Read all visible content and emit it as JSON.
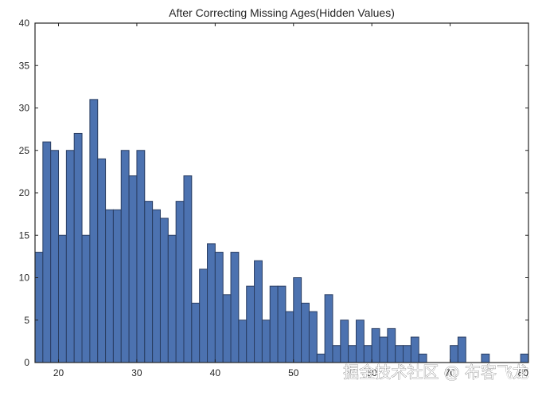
{
  "chart_data": {
    "type": "bar",
    "title": "After Correcting Missing Ages(Hidden Values)",
    "xlabel": "",
    "ylabel": "",
    "xlim": [
      17,
      80
    ],
    "ylim": [
      0,
      40
    ],
    "bin_width": 1,
    "x_ticks": [
      "20",
      "30",
      "40",
      "50",
      "60",
      "70",
      "80"
    ],
    "y_ticks": [
      "0",
      "5",
      "10",
      "15",
      "20",
      "25",
      "30",
      "35",
      "40"
    ],
    "bins": [
      {
        "x": 17,
        "value": 13
      },
      {
        "x": 18,
        "value": 26
      },
      {
        "x": 19,
        "value": 25
      },
      {
        "x": 20,
        "value": 15
      },
      {
        "x": 21,
        "value": 25
      },
      {
        "x": 22,
        "value": 27
      },
      {
        "x": 23,
        "value": 15
      },
      {
        "x": 24,
        "value": 31
      },
      {
        "x": 25,
        "value": 24
      },
      {
        "x": 26,
        "value": 18
      },
      {
        "x": 27,
        "value": 18
      },
      {
        "x": 28,
        "value": 25
      },
      {
        "x": 29,
        "value": 22
      },
      {
        "x": 30,
        "value": 25
      },
      {
        "x": 31,
        "value": 19
      },
      {
        "x": 32,
        "value": 18
      },
      {
        "x": 33,
        "value": 17
      },
      {
        "x": 34,
        "value": 15
      },
      {
        "x": 35,
        "value": 19
      },
      {
        "x": 36,
        "value": 22
      },
      {
        "x": 37,
        "value": 7
      },
      {
        "x": 38,
        "value": 11
      },
      {
        "x": 39,
        "value": 14
      },
      {
        "x": 40,
        "value": 13
      },
      {
        "x": 41,
        "value": 8
      },
      {
        "x": 42,
        "value": 13
      },
      {
        "x": 43,
        "value": 5
      },
      {
        "x": 44,
        "value": 9
      },
      {
        "x": 45,
        "value": 12
      },
      {
        "x": 46,
        "value": 5
      },
      {
        "x": 47,
        "value": 9
      },
      {
        "x": 48,
        "value": 9
      },
      {
        "x": 49,
        "value": 6
      },
      {
        "x": 50,
        "value": 10
      },
      {
        "x": 51,
        "value": 7
      },
      {
        "x": 52,
        "value": 6
      },
      {
        "x": 53,
        "value": 1
      },
      {
        "x": 54,
        "value": 8
      },
      {
        "x": 55,
        "value": 2
      },
      {
        "x": 56,
        "value": 5
      },
      {
        "x": 57,
        "value": 2
      },
      {
        "x": 58,
        "value": 5
      },
      {
        "x": 59,
        "value": 2
      },
      {
        "x": 60,
        "value": 4
      },
      {
        "x": 61,
        "value": 3
      },
      {
        "x": 62,
        "value": 4
      },
      {
        "x": 63,
        "value": 2
      },
      {
        "x": 64,
        "value": 2
      },
      {
        "x": 65,
        "value": 3
      },
      {
        "x": 66,
        "value": 1
      },
      {
        "x": 67,
        "value": 0
      },
      {
        "x": 68,
        "value": 0
      },
      {
        "x": 69,
        "value": 0
      },
      {
        "x": 70,
        "value": 2
      },
      {
        "x": 71,
        "value": 3
      },
      {
        "x": 72,
        "value": 0
      },
      {
        "x": 73,
        "value": 0
      },
      {
        "x": 74,
        "value": 1
      },
      {
        "x": 75,
        "value": 0
      },
      {
        "x": 76,
        "value": 0
      },
      {
        "x": 77,
        "value": 0
      },
      {
        "x": 78,
        "value": 0
      },
      {
        "x": 79,
        "value": 1
      }
    ],
    "bar_color": "#4c72b0",
    "bar_edge_color": "#2a3e63",
    "grid": false
  },
  "watermark": "掘金技术社区 @ 布客飞龙"
}
